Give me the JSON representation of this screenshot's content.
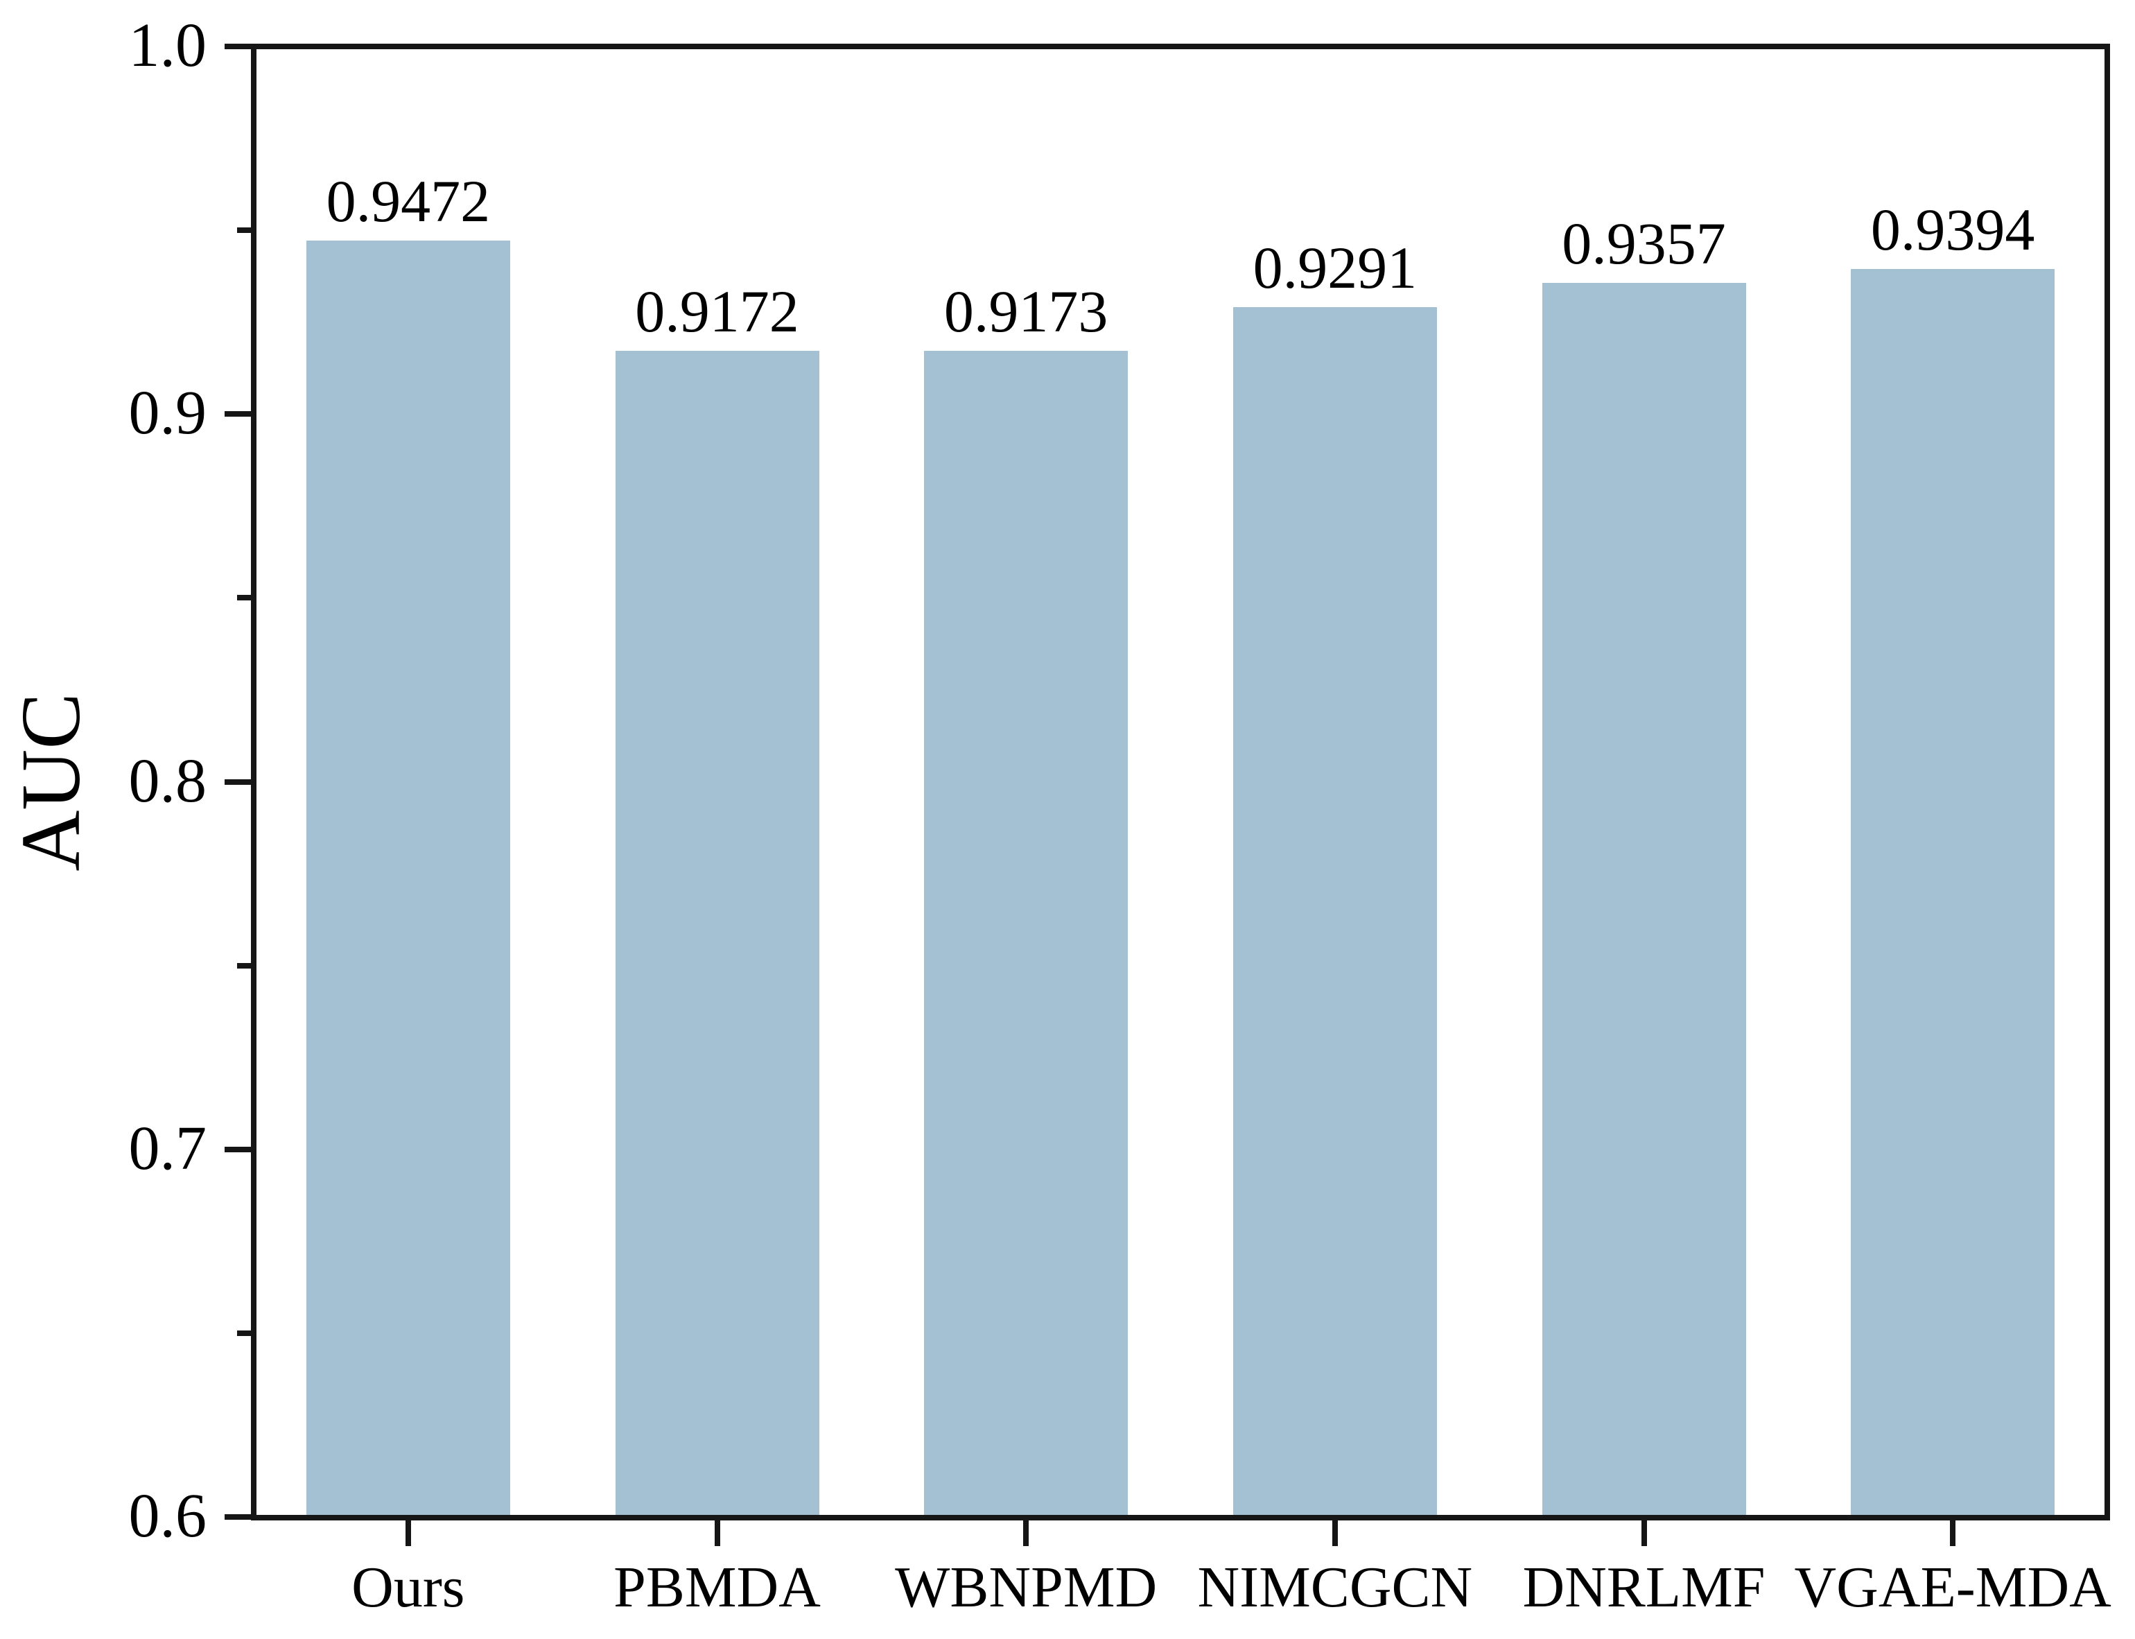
{
  "chart_data": {
    "type": "bar",
    "title": "",
    "xlabel": "",
    "ylabel": "AUC",
    "categories": [
      "Ours",
      "PBMDA",
      "WBNPMD",
      "NIMCGCN",
      "DNRLMF",
      "VGAE-MDA"
    ],
    "values": [
      0.9472,
      0.9172,
      0.9173,
      0.9291,
      0.9357,
      0.9394
    ],
    "value_labels": [
      "0.9472",
      "0.9172",
      "0.9173",
      "0.9291",
      "0.9357",
      "0.9394"
    ],
    "ylim": [
      0.6,
      1.0
    ],
    "yticks": [
      {
        "label": "1.0",
        "value": 1.0
      },
      {
        "label": "0.9",
        "value": 0.9
      },
      {
        "label": "0.8",
        "value": 0.8
      },
      {
        "label": "0.7",
        "value": 0.7
      },
      {
        "label": "0.6",
        "value": 0.6
      }
    ],
    "minor_yticks": [
      0.95,
      0.85,
      0.75,
      0.65
    ],
    "grid": "off",
    "legend": "none",
    "bar_color": "#a3c1d2",
    "axis_color": "#161616",
    "text_color": "#000000",
    "background_color": "#ffffff"
  }
}
